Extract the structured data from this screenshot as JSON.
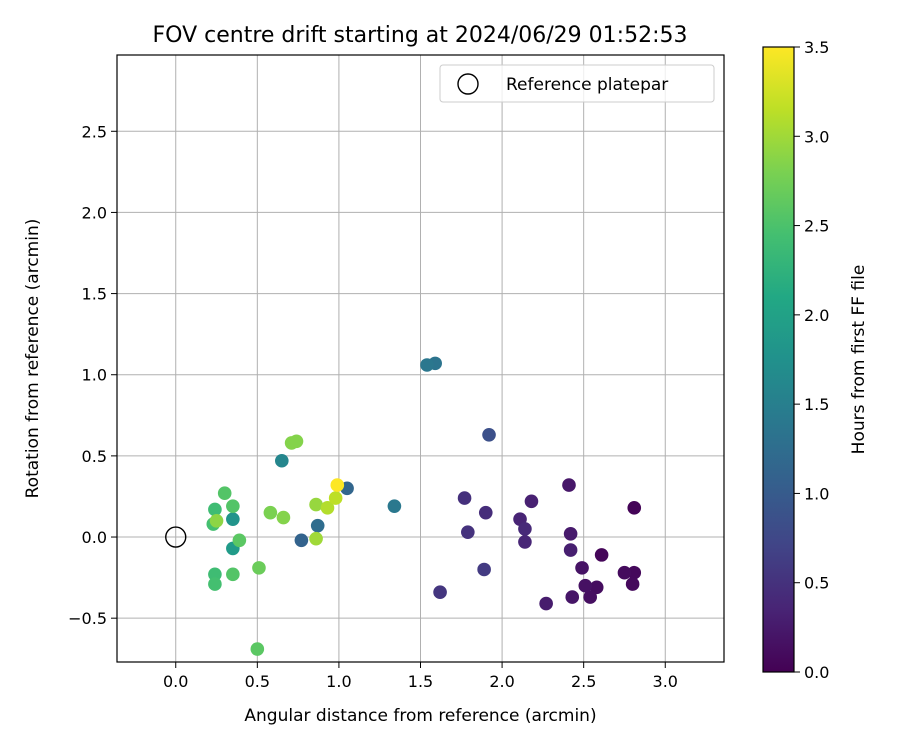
{
  "chart_data": {
    "type": "scatter",
    "title": "FOV centre drift starting at 2024/06/29 01:52:53",
    "xlabel": "Angular distance from reference (arcmin)",
    "ylabel": "Rotation from reference (arcmin)",
    "xlim": [
      -0.36,
      3.36
    ],
    "ylim": [
      -0.77,
      2.97
    ],
    "x_ticks": [
      0.0,
      0.5,
      1.0,
      1.5,
      2.0,
      2.5,
      3.0
    ],
    "x_tick_labels": [
      "0.0",
      "0.5",
      "1.0",
      "1.5",
      "2.0",
      "2.5",
      "3.0"
    ],
    "y_ticks": [
      -0.5,
      0.0,
      0.5,
      1.0,
      1.5,
      2.0,
      2.5
    ],
    "y_tick_labels": [
      "−0.5",
      "0.0",
      "0.5",
      "1.0",
      "1.5",
      "2.0",
      "2.5"
    ],
    "grid": true,
    "legend": {
      "position": "top-right",
      "entries": [
        {
          "label": "Reference platepar",
          "marker": "hollow-circle"
        }
      ]
    },
    "reference_point": {
      "x": 0.0,
      "y": 0.0,
      "label": "Reference platepar"
    },
    "colorbar": {
      "label": "Hours from first FF file",
      "colormap": "viridis",
      "range": [
        0.0,
        3.5
      ],
      "ticks": [
        0.0,
        0.5,
        1.0,
        1.5,
        2.0,
        2.5,
        3.0,
        3.5
      ],
      "tick_labels": [
        "0.0",
        "0.5",
        "1.0",
        "1.5",
        "2.0",
        "2.5",
        "3.0",
        "3.5"
      ]
    },
    "points": [
      {
        "x": 2.81,
        "y": 0.18,
        "c": 0.03
      },
      {
        "x": 2.61,
        "y": -0.11,
        "c": 0.05
      },
      {
        "x": 2.81,
        "y": -0.22,
        "c": 0.07
      },
      {
        "x": 2.8,
        "y": -0.29,
        "c": 0.08
      },
      {
        "x": 2.75,
        "y": -0.22,
        "c": 0.1
      },
      {
        "x": 2.58,
        "y": -0.31,
        "c": 0.12
      },
      {
        "x": 2.54,
        "y": -0.37,
        "c": 0.14
      },
      {
        "x": 2.51,
        "y": -0.3,
        "c": 0.16
      },
      {
        "x": 2.49,
        "y": -0.19,
        "c": 0.18
      },
      {
        "x": 2.43,
        "y": -0.37,
        "c": 0.2
      },
      {
        "x": 2.41,
        "y": 0.32,
        "c": 0.22
      },
      {
        "x": 2.42,
        "y": 0.02,
        "c": 0.25
      },
      {
        "x": 2.27,
        "y": -0.41,
        "c": 0.27
      },
      {
        "x": 2.42,
        "y": -0.08,
        "c": 0.3
      },
      {
        "x": 2.18,
        "y": 0.22,
        "c": 0.32
      },
      {
        "x": 2.11,
        "y": 0.11,
        "c": 0.35
      },
      {
        "x": 2.14,
        "y": -0.03,
        "c": 0.37
      },
      {
        "x": 2.14,
        "y": 0.05,
        "c": 0.4
      },
      {
        "x": 1.9,
        "y": 0.15,
        "c": 0.45
      },
      {
        "x": 1.77,
        "y": 0.24,
        "c": 0.48
      },
      {
        "x": 1.79,
        "y": 0.03,
        "c": 0.5
      },
      {
        "x": 1.62,
        "y": -0.34,
        "c": 0.55
      },
      {
        "x": 1.89,
        "y": -0.2,
        "c": 0.6
      },
      {
        "x": 1.92,
        "y": 0.63,
        "c": 0.85
      },
      {
        "x": 0.77,
        "y": -0.02,
        "c": 1.1
      },
      {
        "x": 1.05,
        "y": 0.3,
        "c": 1.15
      },
      {
        "x": 0.87,
        "y": 0.07,
        "c": 1.25
      },
      {
        "x": 1.59,
        "y": 1.07,
        "c": 1.35
      },
      {
        "x": 1.54,
        "y": 1.06,
        "c": 1.38
      },
      {
        "x": 1.34,
        "y": 0.19,
        "c": 1.4
      },
      {
        "x": 0.65,
        "y": 0.47,
        "c": 1.6
      },
      {
        "x": 0.35,
        "y": 0.11,
        "c": 1.8
      },
      {
        "x": 0.35,
        "y": -0.07,
        "c": 1.9
      },
      {
        "x": 0.24,
        "y": 0.17,
        "c": 2.4
      },
      {
        "x": 0.23,
        "y": 0.08,
        "c": 2.45
      },
      {
        "x": 0.24,
        "y": -0.23,
        "c": 2.4
      },
      {
        "x": 0.24,
        "y": -0.29,
        "c": 2.45
      },
      {
        "x": 0.3,
        "y": 0.27,
        "c": 2.55
      },
      {
        "x": 0.35,
        "y": 0.19,
        "c": 2.55
      },
      {
        "x": 0.35,
        "y": -0.23,
        "c": 2.55
      },
      {
        "x": 0.39,
        "y": -0.02,
        "c": 2.6
      },
      {
        "x": 0.5,
        "y": -0.69,
        "c": 2.6
      },
      {
        "x": 0.51,
        "y": -0.19,
        "c": 2.7
      },
      {
        "x": 0.58,
        "y": 0.15,
        "c": 2.8
      },
      {
        "x": 0.66,
        "y": 0.12,
        "c": 2.85
      },
      {
        "x": 0.71,
        "y": 0.58,
        "c": 2.85
      },
      {
        "x": 0.74,
        "y": 0.59,
        "c": 2.85
      },
      {
        "x": 0.25,
        "y": 0.1,
        "c": 2.9
      },
      {
        "x": 0.86,
        "y": 0.2,
        "c": 2.95
      },
      {
        "x": 0.86,
        "y": -0.01,
        "c": 3.0
      },
      {
        "x": 0.93,
        "y": 0.18,
        "c": 3.1
      },
      {
        "x": 0.98,
        "y": 0.24,
        "c": 3.15
      },
      {
        "x": 0.99,
        "y": 0.32,
        "c": 3.5
      }
    ]
  }
}
